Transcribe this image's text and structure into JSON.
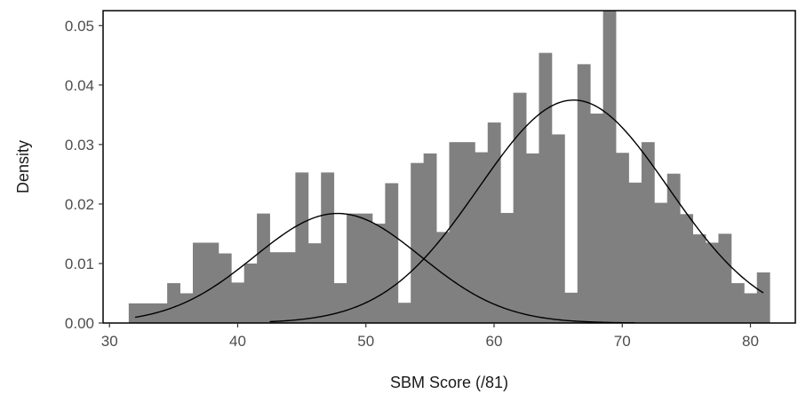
{
  "chart_data": {
    "type": "bar",
    "subtype": "histogram-with-density-curves",
    "title": "",
    "xlabel": "SBM Score (/81)",
    "ylabel": "Density",
    "xlim": [
      29.5,
      83.5
    ],
    "ylim": [
      0,
      0.0525
    ],
    "grid": false,
    "legend": "none",
    "x_ticks": [
      30,
      40,
      50,
      60,
      70,
      80
    ],
    "x_tick_labels": [
      "30",
      "40",
      "50",
      "60",
      "70",
      "80"
    ],
    "y_ticks": [
      0.0,
      0.01,
      0.02,
      0.03,
      0.04,
      0.05
    ],
    "y_tick_labels": [
      "0.00",
      "0.01",
      "0.02",
      "0.03",
      "0.04",
      "0.05"
    ],
    "bin_width": 1,
    "bin_starts": [
      31.5,
      32.5,
      33.5,
      34.5,
      35.5,
      36.5,
      37.5,
      38.5,
      39.5,
      40.5,
      41.5,
      42.5,
      43.5,
      44.5,
      45.5,
      46.5,
      47.5,
      48.5,
      49.5,
      50.5,
      51.5,
      52.5,
      53.5,
      54.5,
      55.5,
      56.5,
      57.5,
      58.5,
      59.5,
      60.5,
      61.5,
      62.5,
      63.5,
      64.5,
      65.5,
      66.5,
      67.5,
      68.5,
      69.5,
      70.5,
      71.5,
      72.5,
      73.5,
      74.5,
      75.5,
      76.5,
      77.5,
      78.5,
      79.5,
      80.5
    ],
    "values": [
      0.0033,
      0.0033,
      0.0033,
      0.0067,
      0.005,
      0.0135,
      0.0135,
      0.0117,
      0.0068,
      0.01,
      0.0184,
      0.0119,
      0.0119,
      0.0253,
      0.0134,
      0.0253,
      0.0067,
      0.0184,
      0.0184,
      0.0167,
      0.0235,
      0.0034,
      0.0269,
      0.0285,
      0.0153,
      0.0304,
      0.0304,
      0.0287,
      0.0337,
      0.0185,
      0.0387,
      0.0285,
      0.0454,
      0.0317,
      0.0051,
      0.0435,
      0.0352,
      0.0525,
      0.0286,
      0.0236,
      0.0304,
      0.0202,
      0.0251,
      0.0183,
      0.0149,
      0.0135,
      0.015,
      0.0067,
      0.005,
      0.0085
    ],
    "series": [
      {
        "type": "normal-curve",
        "mean": 47.8,
        "sd": 6.5,
        "weight": 0.3,
        "x_range": [
          32,
          71
        ],
        "color": "#000000"
      },
      {
        "type": "normal-curve",
        "mean": 66.2,
        "sd": 7.4,
        "weight": 0.695,
        "x_range": [
          42.5,
          81
        ],
        "color": "#000000"
      }
    ],
    "bar_color": "#808080"
  }
}
